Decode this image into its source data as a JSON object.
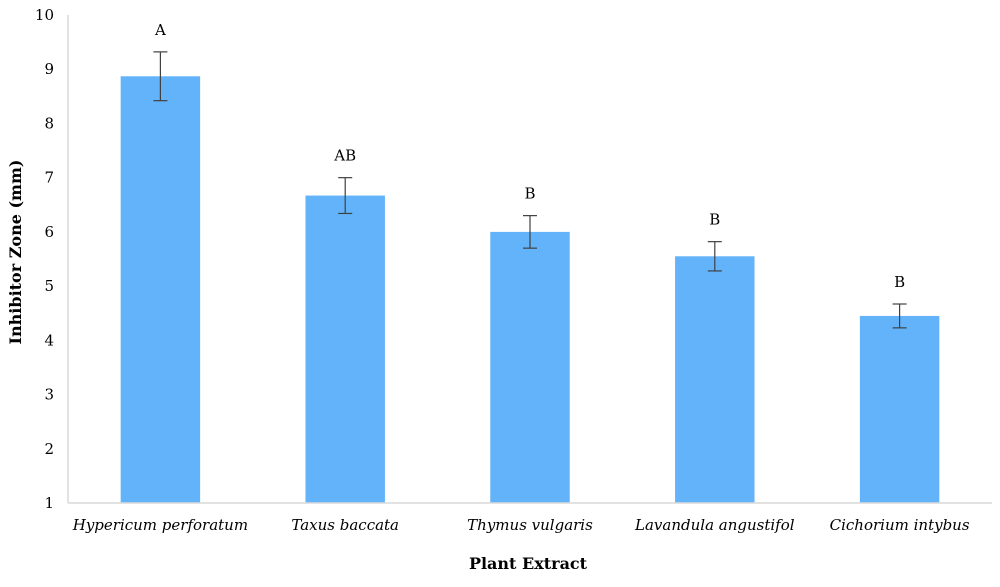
{
  "chart_data": {
    "type": "bar",
    "title": "",
    "xlabel": "Plant Extract",
    "ylabel": "Inhibitor Zone (mm)",
    "ylim": [
      1,
      10
    ],
    "yticks": [
      1,
      2,
      3,
      4,
      5,
      6,
      7,
      8,
      9,
      10
    ],
    "grid": false,
    "legend": "none",
    "categories": [
      "Hypericum perforatum",
      "Taxus baccata",
      "Thymus vulgaris",
      "Lavandula angustifol",
      "Cichorium intybus"
    ],
    "values": [
      8.87,
      6.67,
      6.0,
      5.55,
      4.45
    ],
    "error": [
      0.45,
      0.33,
      0.3,
      0.27,
      0.22
    ],
    "significance_labels": [
      "A",
      "AB",
      "B",
      "B",
      "B"
    ],
    "bar_color": "#62b3fa",
    "axis_color": "#d9d9d9",
    "errorbar_color": "#404040"
  }
}
